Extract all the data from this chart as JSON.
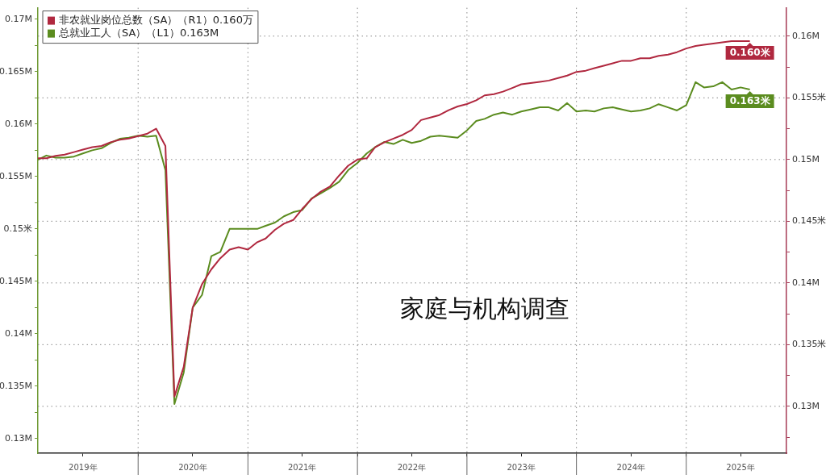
{
  "chart_data": {
    "type": "line",
    "annotations": [
      "家庭与机构调查"
    ],
    "x": [
      "2019-02",
      "2019-03",
      "2019-04",
      "2019-05",
      "2019-06",
      "2019-07",
      "2019-08",
      "2019-09",
      "2019-10",
      "2019-11",
      "2019-12",
      "2020-01",
      "2020-02",
      "2020-03",
      "2020-04",
      "2020-05",
      "2020-06",
      "2020-07",
      "2020-08",
      "2020-09",
      "2020-10",
      "2020-11",
      "2020-12",
      "2021-01",
      "2021-02",
      "2021-03",
      "2021-04",
      "2021-05",
      "2021-06",
      "2021-07",
      "2021-08",
      "2021-09",
      "2021-10",
      "2021-11",
      "2021-12",
      "2022-01",
      "2022-02",
      "2022-03",
      "2022-04",
      "2022-05",
      "2022-06",
      "2022-07",
      "2022-08",
      "2022-09",
      "2022-10",
      "2022-11",
      "2022-12",
      "2023-01",
      "2023-02",
      "2023-03",
      "2023-04",
      "2023-05",
      "2023-06",
      "2023-07",
      "2023-08",
      "2023-09",
      "2023-10",
      "2023-11",
      "2023-12",
      "2024-01",
      "2024-02",
      "2024-03",
      "2024-04",
      "2024-05",
      "2024-06",
      "2024-07",
      "2024-08",
      "2024-09",
      "2024-10",
      "2024-11",
      "2024-12",
      "2025-01",
      "2025-02",
      "2025-03",
      "2025-04",
      "2025-05",
      "2025-06",
      "2025-07",
      "2025-08"
    ],
    "series": [
      {
        "name": "非农就业岗位总数（SA）（R1）0.160万",
        "color": "#b0283f",
        "axis": "y2",
        "values": [
          0.1501,
          0.1501,
          0.1503,
          0.1504,
          0.1506,
          0.1508,
          0.151,
          0.1511,
          0.1514,
          0.1516,
          0.1517,
          0.1519,
          0.1521,
          0.1525,
          0.1511,
          0.1308,
          0.1332,
          0.138,
          0.1399,
          0.1411,
          0.142,
          0.1427,
          0.1429,
          0.1427,
          0.1433,
          0.1436,
          0.1443,
          0.1448,
          0.1451,
          0.146,
          0.1468,
          0.1474,
          0.1478,
          0.1487,
          0.1495,
          0.15,
          0.1501,
          0.151,
          0.1514,
          0.1517,
          0.152,
          0.1524,
          0.1532,
          0.1534,
          0.1536,
          0.154,
          0.1543,
          0.1545,
          0.1548,
          0.1552,
          0.1553,
          0.1555,
          0.1558,
          0.1561,
          0.1562,
          0.1563,
          0.1564,
          0.1566,
          0.1568,
          0.1571,
          0.1572,
          0.1574,
          0.1576,
          0.1578,
          0.158,
          0.158,
          0.1582,
          0.1582,
          0.1584,
          0.1585,
          0.1587,
          0.159,
          0.1592,
          0.1593,
          0.1594,
          0.1595,
          0.1596,
          0.1596,
          0.1596
        ],
        "value_labels": [
          null,
          null,
          null,
          null,
          null,
          null,
          null,
          null,
          null,
          null,
          null,
          null,
          null,
          null,
          null,
          null,
          null,
          null,
          null,
          null,
          null,
          null,
          null,
          null,
          null,
          null,
          null,
          null,
          null,
          null,
          null,
          null,
          null,
          null,
          null,
          null,
          null,
          null,
          null,
          null,
          null,
          null,
          null,
          null,
          null,
          null,
          null,
          null,
          null,
          null,
          null,
          null,
          null,
          null,
          null,
          null,
          null,
          null,
          null,
          null,
          null,
          null,
          null,
          null,
          null,
          null,
          null,
          null,
          null,
          null,
          null,
          null,
          null,
          null,
          null,
          null,
          null,
          null,
          "0.160米"
        ]
      },
      {
        "name": "总就业工人（SA）（L1）0.163M",
        "color": "#5b8c1f",
        "values": [
          0.1566,
          0.157,
          0.1568,
          0.1568,
          0.1569,
          0.1572,
          0.1575,
          0.1577,
          0.1582,
          0.1586,
          0.1587,
          0.1589,
          0.1588,
          0.1589,
          0.1556,
          0.1333,
          0.1363,
          0.1425,
          0.1437,
          0.1474,
          0.1478,
          0.15,
          0.15,
          0.15,
          0.15,
          0.1503,
          0.1506,
          0.1512,
          0.1516,
          0.1518,
          0.1529,
          0.1534,
          0.1539,
          0.1545,
          0.1556,
          0.1563,
          0.1572,
          0.1578,
          0.1583,
          0.1581,
          0.1585,
          0.1582,
          0.1584,
          0.1588,
          0.1589,
          0.1588,
          0.1587,
          0.1594,
          0.1603,
          0.1605,
          0.1609,
          0.1611,
          0.1609,
          0.1612,
          0.1614,
          0.1616,
          0.1616,
          0.1613,
          0.162,
          0.1612,
          0.1613,
          0.1612,
          0.1615,
          0.1616,
          0.1614,
          0.1612,
          0.1613,
          0.1615,
          0.1619,
          0.1616,
          0.1613,
          0.1618,
          0.164,
          0.1635,
          0.1636,
          0.164,
          0.1633,
          0.1635,
          0.1633
        ],
        "value_labels": [
          null,
          null,
          null,
          null,
          null,
          null,
          null,
          null,
          null,
          null,
          null,
          null,
          null,
          null,
          null,
          null,
          null,
          null,
          null,
          null,
          null,
          null,
          null,
          null,
          null,
          null,
          null,
          null,
          null,
          null,
          null,
          null,
          null,
          null,
          null,
          null,
          null,
          null,
          null,
          null,
          null,
          null,
          null,
          null,
          null,
          null,
          null,
          null,
          null,
          null,
          null,
          null,
          null,
          null,
          null,
          null,
          null,
          null,
          null,
          null,
          null,
          null,
          null,
          null,
          null,
          null,
          null,
          null,
          null,
          null,
          null,
          null,
          null,
          null,
          null,
          null,
          null,
          null,
          "0.163米"
        ]
      }
    ],
    "xlim": [
      "2019-02",
      "2025-12"
    ],
    "xticks": [
      {
        "value": "2019-07",
        "label": "2019年"
      },
      {
        "value": "2020-01",
        "label": null
      },
      {
        "value": "2020-07",
        "label": "2020年"
      },
      {
        "value": "2021-01",
        "label": null
      },
      {
        "value": "2021-07",
        "label": "2021年"
      },
      {
        "value": "2022-01",
        "label": null
      },
      {
        "value": "2022-07",
        "label": "2022年"
      },
      {
        "value": "2023-01",
        "label": null
      },
      {
        "value": "2023-07",
        "label": "2023年"
      },
      {
        "value": "2024-01",
        "label": null
      },
      {
        "value": "2024-07",
        "label": "2024年"
      },
      {
        "value": "2025-01",
        "label": null
      },
      {
        "value": "2025-07",
        "label": "2025年"
      }
    ],
    "ylim": [
      0.1286,
      0.1711
    ],
    "yticks": [
      {
        "value": 0.13,
        "label": "0.13M"
      },
      {
        "value": 0.1325,
        "label": null
      },
      {
        "value": 0.135,
        "label": "0.135M"
      },
      {
        "value": 0.1375,
        "label": null
      },
      {
        "value": 0.14,
        "label": "0.14M"
      },
      {
        "value": 0.1425,
        "label": null
      },
      {
        "value": 0.145,
        "label": "0.145M"
      },
      {
        "value": 0.1475,
        "label": null
      },
      {
        "value": 0.15,
        "label": "0.15米"
      },
      {
        "value": 0.1525,
        "label": null
      },
      {
        "value": 0.155,
        "label": "0.155M"
      },
      {
        "value": 0.1575,
        "label": null
      },
      {
        "value": 0.16,
        "label": "0.16M"
      },
      {
        "value": 0.1625,
        "label": null
      },
      {
        "value": 0.165,
        "label": "0.165M"
      },
      {
        "value": 0.1675,
        "label": null
      },
      {
        "value": 0.17,
        "label": "0.17M"
      }
    ],
    "y2lim": [
      0.1262,
      0.1623
    ],
    "y2ticks": [
      {
        "value": 0.1275,
        "label": null
      },
      {
        "value": 0.13,
        "label": "0.13M"
      },
      {
        "value": 0.1325,
        "label": null
      },
      {
        "value": 0.135,
        "label": "0.135米"
      },
      {
        "value": 0.1375,
        "label": null
      },
      {
        "value": 0.14,
        "label": "0.14M"
      },
      {
        "value": 0.1425,
        "label": null
      },
      {
        "value": 0.145,
        "label": "0.145米"
      },
      {
        "value": 0.1475,
        "label": null
      },
      {
        "value": 0.15,
        "label": "0.15M"
      },
      {
        "value": 0.1525,
        "label": null
      },
      {
        "value": 0.155,
        "label": "0.155米"
      },
      {
        "value": 0.1575,
        "label": null
      },
      {
        "value": 0.16,
        "label": "0.16M"
      }
    ],
    "grid": true,
    "legend": "top left"
  }
}
